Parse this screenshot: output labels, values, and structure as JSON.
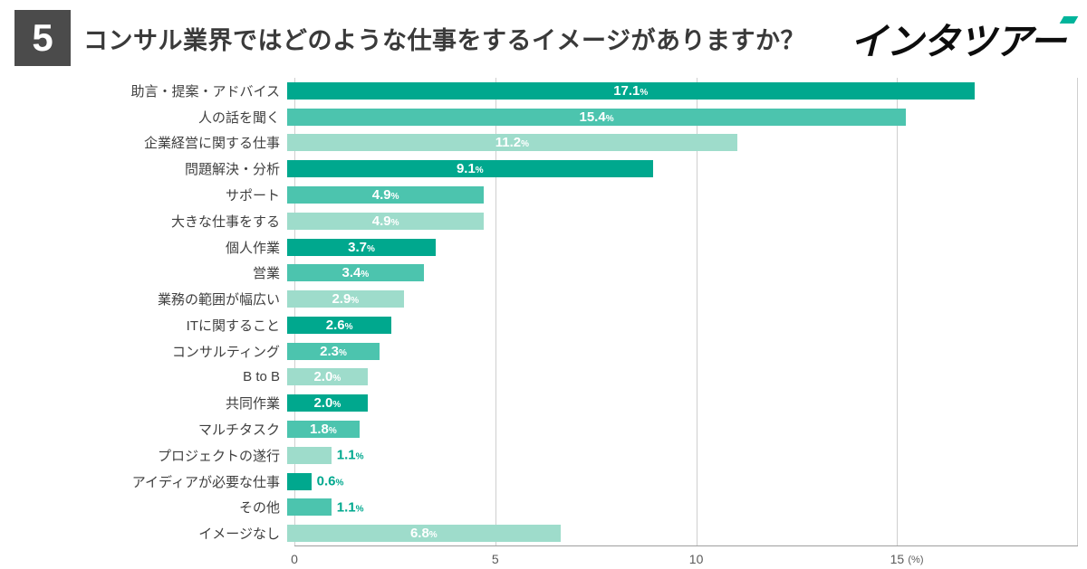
{
  "header": {
    "number": "5",
    "title": "コンサル業界ではどのような仕事をするイメージがありますか？",
    "logo": "インタツアー"
  },
  "chart_data": {
    "type": "bar",
    "orientation": "horizontal",
    "title": "コンサル業界ではどのような仕事をするイメージがありますか？",
    "categories": [
      "助言・提案・アドバイス",
      "人の話を聞く",
      "企業経営に関する仕事",
      "問題解決・分析",
      "サポート",
      "大きな仕事をする",
      "個人作業",
      "営業",
      "業務の範囲が幅広い",
      "ITに関すること",
      "コンサルティング",
      "B to B",
      "共同作業",
      "マルチタスク",
      "プロジェクトの遂行",
      "アイディアが必要な仕事",
      "その他",
      "イメージなし"
    ],
    "values": [
      17.1,
      15.4,
      11.2,
      9.1,
      4.9,
      4.9,
      3.7,
      3.4,
      2.9,
      2.6,
      2.3,
      2.0,
      2.0,
      1.8,
      1.1,
      0.6,
      1.1,
      6.8
    ],
    "value_suffix": "%",
    "xlim": [
      0,
      19.5
    ],
    "x_ticks": [
      0,
      5,
      10,
      15
    ],
    "x_unit": "(%)",
    "grid": true,
    "legend": "none",
    "bar_colors_cycle": [
      "#00a88e",
      "#4cc4ae",
      "#9edccb"
    ],
    "outside_label_color": "#00a88e",
    "inside_label_color": "#ffffff",
    "label_inside_threshold": 1.5,
    "accent_color": "#00b49b"
  }
}
